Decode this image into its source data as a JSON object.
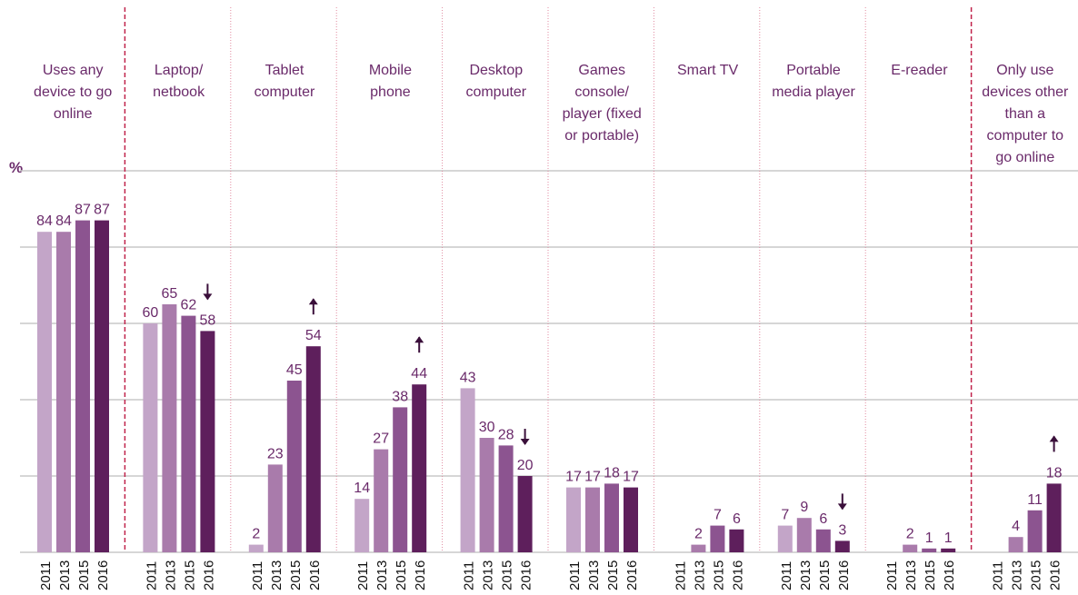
{
  "chart_data": {
    "type": "bar",
    "y_label": "%",
    "categories": [
      "Uses any\ndevice to go\nonline",
      "Laptop/\nnetbook",
      "Tablet\ncomputer",
      "Mobile\nphone",
      "Desktop\ncomputer",
      "Games\nconsole/\nplayer (fixed\nor portable)",
      "Smart TV",
      "Portable\nmedia player",
      "E-reader",
      "Only use\ndevices other\nthan a\ncomputer to\ngo online"
    ],
    "series": [
      {
        "name": "2011",
        "color": "#c3a5c8",
        "values": [
          84,
          60,
          2,
          14,
          43,
          17,
          null,
          7,
          null,
          null
        ]
      },
      {
        "name": "2013",
        "color": "#a97bab",
        "values": [
          84,
          65,
          23,
          27,
          30,
          17,
          2,
          9,
          2,
          4
        ]
      },
      {
        "name": "2015",
        "color": "#8c5490",
        "values": [
          87,
          62,
          45,
          38,
          28,
          18,
          7,
          6,
          1,
          11
        ]
      },
      {
        "name": "2016",
        "color": "#5e1f5c",
        "values": [
          87,
          58,
          54,
          44,
          20,
          17,
          6,
          3,
          1,
          18
        ]
      }
    ],
    "change_2016": [
      null,
      "down",
      "up",
      "up",
      "down",
      null,
      null,
      "down",
      null,
      "up"
    ],
    "ylim": [
      0,
      100
    ],
    "yticks": [
      0,
      20,
      40,
      60,
      80,
      100
    ],
    "grid": true
  }
}
